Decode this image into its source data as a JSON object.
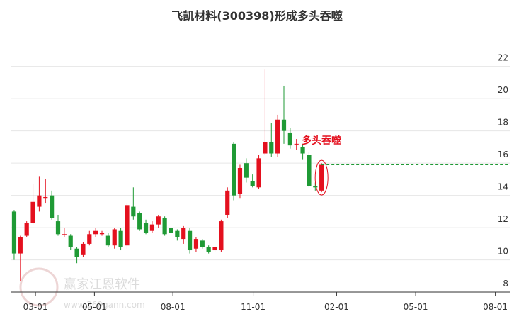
{
  "chart_data": {
    "type": "candlestick",
    "title": "飞凯材料(300398)形成多头吞噬",
    "annotation": "多头吞噬",
    "watermark": "赢家江恩软件",
    "watermark_url": "www.360gann.com",
    "up_color": "#e4101e",
    "down_color": "#1f9a35",
    "grid": true,
    "open": [
      13.0,
      10.4,
      11.5,
      12.3,
      13.3,
      13.8,
      14.0,
      12.4,
      11.6,
      11.5,
      10.7,
      10.3,
      11.0,
      11.6,
      11.6,
      11.5,
      10.9,
      11.8,
      10.9,
      13.3,
      12.9,
      12.3,
      11.8,
      12.2,
      12.6,
      12.0,
      11.8,
      11.3,
      11.8,
      10.7,
      11.2,
      10.8,
      10.6,
      10.6,
      12.8,
      17.2,
      14.1,
      16.0,
      14.9,
      14.5,
      16.6,
      17.3,
      16.6,
      18.7,
      17.9,
      17.2,
      17.0,
      16.5,
      14.6,
      14.3
    ],
    "high": [
      13.1,
      11.5,
      12.4,
      14.7,
      15.2,
      15.0,
      14.3,
      12.8,
      12.0,
      11.6,
      10.8,
      11.1,
      11.8,
      12.0,
      11.8,
      11.7,
      12.0,
      12.0,
      13.5,
      14.5,
      13.0,
      12.5,
      12.4,
      12.8,
      12.7,
      12.1,
      11.9,
      12.1,
      12.0,
      11.4,
      11.3,
      10.9,
      10.9,
      12.5,
      14.5,
      17.3,
      15.9,
      16.3,
      15.3,
      16.5,
      21.8,
      18.5,
      19.0,
      20.8,
      18.2,
      17.5,
      17.2,
      16.7,
      14.8,
      16.0
    ],
    "low": [
      10.0,
      8.7,
      11.4,
      12.2,
      13.0,
      13.5,
      12.5,
      11.5,
      11.4,
      10.6,
      9.8,
      10.2,
      10.9,
      11.4,
      11.5,
      10.8,
      10.7,
      10.6,
      10.7,
      12.5,
      11.8,
      11.6,
      11.7,
      12.0,
      11.5,
      11.5,
      11.2,
      11.0,
      10.4,
      10.5,
      10.7,
      10.4,
      10.5,
      10.5,
      12.6,
      13.7,
      13.8,
      14.8,
      14.5,
      14.4,
      16.5,
      16.4,
      16.4,
      17.2,
      16.9,
      16.8,
      16.2,
      14.5,
      14.3,
      14.2
    ],
    "close": [
      10.4,
      11.4,
      12.3,
      13.6,
      14.0,
      13.9,
      12.6,
      11.6,
      11.6,
      10.8,
      10.2,
      11.0,
      11.6,
      11.8,
      11.7,
      10.9,
      11.9,
      10.8,
      13.4,
      12.7,
      11.9,
      11.7,
      12.2,
      12.7,
      11.6,
      11.7,
      11.4,
      12.0,
      10.6,
      11.3,
      10.8,
      10.5,
      10.8,
      12.4,
      14.3,
      14.0,
      15.7,
      15.1,
      14.6,
      16.3,
      17.3,
      16.6,
      18.7,
      18.0,
      17.1,
      17.2,
      16.6,
      14.6,
      14.5,
      15.9
    ],
    "xlim": [
      -0.56,
      79.0
    ],
    "xticks": [
      {
        "value": 3.4,
        "label": "03-01"
      },
      {
        "value": 12.8,
        "label": "05-01"
      },
      {
        "value": 25.3,
        "label": "08-01"
      },
      {
        "value": 38.1,
        "label": "11-01"
      },
      {
        "value": 51.4,
        "label": "02-01"
      },
      {
        "value": 64.0,
        "label": "05-01"
      },
      {
        "value": 76.7,
        "label": "08-01"
      }
    ],
    "ylim": [
      7.7,
      23.7
    ],
    "yticks": [
      8,
      10,
      12,
      14,
      16,
      18,
      20,
      22
    ]
  }
}
